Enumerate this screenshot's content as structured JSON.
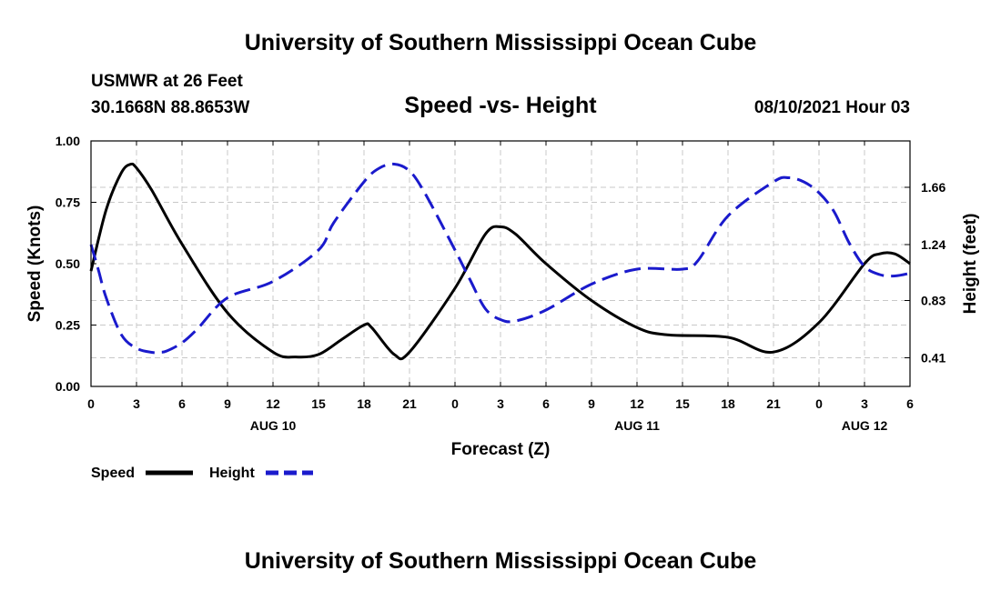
{
  "header": {
    "title": "University of Southern Mississippi Ocean Cube",
    "station": "USMWR at 26 Feet",
    "coords": "30.1668N  88.8653W",
    "chart_title": "Speed -vs- Height",
    "datetime": "08/10/2021 Hour 03"
  },
  "footer": {
    "title": "University of Southern Mississippi Ocean Cube"
  },
  "colors": {
    "speed": "#000000",
    "height": "#1a1acc",
    "grid": "#c8c8c8"
  },
  "legend": {
    "speed_label": "Speed",
    "height_label": "Height"
  },
  "chart_data": {
    "type": "line",
    "title": "Speed -vs- Height",
    "xlabel": "Forecast (Z)",
    "ylabel_left": "Speed (Knots)",
    "ylabel_right": "Height (feet)",
    "xlim": [
      0,
      54
    ],
    "ylim_left": [
      0,
      1.0
    ],
    "ylim_right": [
      0.2,
      2.0
    ],
    "x_ticks": [
      0,
      3,
      6,
      9,
      12,
      15,
      18,
      21,
      24,
      27,
      30,
      33,
      36,
      39,
      42,
      45,
      48,
      51,
      54
    ],
    "x_tick_labels": [
      "0",
      "3",
      "6",
      "9",
      "12",
      "15",
      "18",
      "21",
      "0",
      "3",
      "6",
      "9",
      "12",
      "15",
      "18",
      "21",
      "0",
      "3",
      "6"
    ],
    "date_labels": [
      {
        "x": 12,
        "text": "AUG 10"
      },
      {
        "x": 36,
        "text": "AUG 11"
      },
      {
        "x": 51,
        "text": "AUG 12"
      }
    ],
    "y_left_ticks": [
      0,
      0.25,
      0.5,
      0.75,
      1.0
    ],
    "y_left_tick_labels": [
      "0.00",
      "0.25",
      "0.50",
      "0.75",
      "1.00"
    ],
    "y_right_ticks": [
      0.41,
      0.83,
      1.24,
      1.66
    ],
    "y_right_tick_labels": [
      "0.41",
      "0.83",
      "1.24",
      "1.66"
    ],
    "grid": true,
    "legend_position": "bottom-left",
    "series": [
      {
        "name": "Speed",
        "axis": "left",
        "style": "solid",
        "x": [
          0,
          1,
          2,
          2.6,
          3,
          4,
          6,
          9,
          12,
          13.5,
          15,
          16.5,
          18,
          18.5,
          20,
          21,
          24,
          26,
          27,
          28,
          30,
          33,
          36,
          38,
          42,
          45,
          48,
          51,
          52,
          53,
          54
        ],
        "y": [
          0.47,
          0.72,
          0.87,
          0.905,
          0.89,
          0.8,
          0.58,
          0.3,
          0.14,
          0.12,
          0.13,
          0.19,
          0.25,
          0.24,
          0.13,
          0.14,
          0.4,
          0.62,
          0.65,
          0.62,
          0.5,
          0.35,
          0.24,
          0.21,
          0.2,
          0.14,
          0.26,
          0.5,
          0.54,
          0.54,
          0.5
        ]
      },
      {
        "name": "Height",
        "axis": "right",
        "style": "dashed",
        "x": [
          0,
          0.5,
          1,
          2,
          3,
          4,
          4.5,
          5,
          6,
          7,
          9,
          12,
          15,
          16,
          18,
          19,
          20,
          21,
          22,
          24,
          25,
          26,
          27,
          28,
          30,
          33,
          36,
          39,
          40,
          42,
          45,
          46,
          47,
          48,
          49,
          50,
          51,
          52,
          53,
          54
        ],
        "y": [
          1.24,
          1.05,
          0.85,
          0.58,
          0.48,
          0.45,
          0.45,
          0.46,
          0.52,
          0.62,
          0.85,
          0.97,
          1.2,
          1.4,
          1.7,
          1.8,
          1.83,
          1.78,
          1.62,
          1.2,
          0.98,
          0.77,
          0.69,
          0.68,
          0.76,
          0.95,
          1.06,
          1.06,
          1.12,
          1.45,
          1.7,
          1.73,
          1.7,
          1.62,
          1.48,
          1.25,
          1.08,
          1.02,
          1.01,
          1.03
        ]
      }
    ]
  }
}
